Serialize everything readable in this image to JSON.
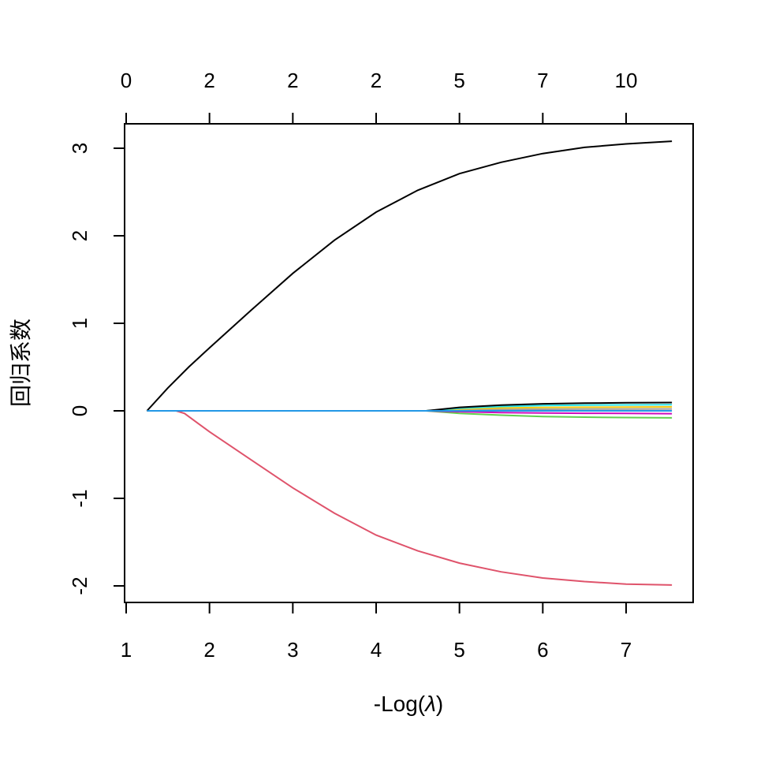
{
  "chart_data": {
    "type": "line",
    "title": "",
    "xlabel_parts": [
      "-Log(",
      "λ",
      ")"
    ],
    "ylabel": "回归系数",
    "xlim": [
      1,
      7.8
    ],
    "ylim": [
      -2.2,
      3.3
    ],
    "x_ticks": [
      1,
      2,
      3,
      4,
      5,
      6,
      7
    ],
    "y_ticks": [
      -2,
      -1,
      0,
      1,
      2,
      3
    ],
    "top_axis": {
      "positions": [
        1,
        2,
        3,
        4,
        5,
        6,
        7
      ],
      "labels": [
        "0",
        "2",
        "2",
        "2",
        "5",
        "7",
        "10"
      ]
    },
    "grid": false,
    "series": [
      {
        "color": "#000000",
        "points": [
          [
            1.25,
            0
          ],
          [
            1.5,
            0.26
          ],
          [
            1.75,
            0.5
          ],
          [
            2,
            0.72
          ],
          [
            2.5,
            1.15
          ],
          [
            3,
            1.57
          ],
          [
            3.5,
            1.95
          ],
          [
            4,
            2.27
          ],
          [
            4.5,
            2.52
          ],
          [
            5,
            2.71
          ],
          [
            5.5,
            2.84
          ],
          [
            6,
            2.94
          ],
          [
            6.5,
            3.01
          ],
          [
            7,
            3.05
          ],
          [
            7.55,
            3.08
          ]
        ]
      },
      {
        "color": "#DF536B",
        "points": [
          [
            1.25,
            0
          ],
          [
            1.6,
            0
          ],
          [
            1.7,
            -0.03
          ],
          [
            2,
            -0.24
          ],
          [
            2.5,
            -0.56
          ],
          [
            3,
            -0.88
          ],
          [
            3.5,
            -1.17
          ],
          [
            4,
            -1.42
          ],
          [
            4.5,
            -1.6
          ],
          [
            5,
            -1.74
          ],
          [
            5.5,
            -1.84
          ],
          [
            6,
            -1.91
          ],
          [
            6.5,
            -1.95
          ],
          [
            7,
            -1.98
          ],
          [
            7.55,
            -1.99
          ]
        ]
      },
      {
        "color": "#61D04F",
        "points": [
          [
            1.25,
            0
          ],
          [
            4.6,
            0
          ],
          [
            5,
            -0.03
          ],
          [
            5.5,
            -0.05
          ],
          [
            6,
            -0.065
          ],
          [
            6.5,
            -0.072
          ],
          [
            7,
            -0.077
          ],
          [
            7.55,
            -0.08
          ]
        ]
      },
      {
        "color": "#CD0BBC",
        "points": [
          [
            1.25,
            0
          ],
          [
            4.6,
            0
          ],
          [
            5,
            -0.01
          ],
          [
            5.5,
            -0.02
          ],
          [
            6,
            -0.025
          ],
          [
            6.5,
            -0.028
          ],
          [
            7,
            -0.03
          ],
          [
            7.55,
            -0.032
          ]
        ]
      },
      {
        "color": "#9E9E9E",
        "points": [
          [
            1.25,
            0
          ],
          [
            4.6,
            0
          ],
          [
            5,
            0.01
          ],
          [
            5.5,
            0.015
          ],
          [
            6,
            0.018
          ],
          [
            6.5,
            0.02
          ],
          [
            7,
            0.021
          ],
          [
            7.55,
            0.022
          ]
        ]
      },
      {
        "color": "#F5C710",
        "points": [
          [
            1.25,
            0
          ],
          [
            4.6,
            0
          ],
          [
            5,
            0.02
          ],
          [
            5.5,
            0.032
          ],
          [
            6,
            0.038
          ],
          [
            6.5,
            0.041
          ],
          [
            7,
            0.043
          ],
          [
            7.55,
            0.045
          ]
        ]
      },
      {
        "color": "#28E2E5",
        "points": [
          [
            1.25,
            0
          ],
          [
            4.6,
            0
          ],
          [
            5,
            0.03
          ],
          [
            5.5,
            0.05
          ],
          [
            6,
            0.06
          ],
          [
            6.5,
            0.065
          ],
          [
            7,
            0.068
          ],
          [
            7.55,
            0.07
          ]
        ]
      },
      {
        "color": "#000000",
        "points": [
          [
            1.25,
            0
          ],
          [
            4.6,
            0
          ],
          [
            5,
            0.04
          ],
          [
            5.5,
            0.065
          ],
          [
            6,
            0.08
          ],
          [
            6.5,
            0.087
          ],
          [
            7,
            0.092
          ],
          [
            7.55,
            0.095
          ]
        ]
      },
      {
        "color": "#2297E6",
        "points": [
          [
            1.25,
            0
          ],
          [
            7.55,
            0
          ]
        ]
      }
    ]
  }
}
